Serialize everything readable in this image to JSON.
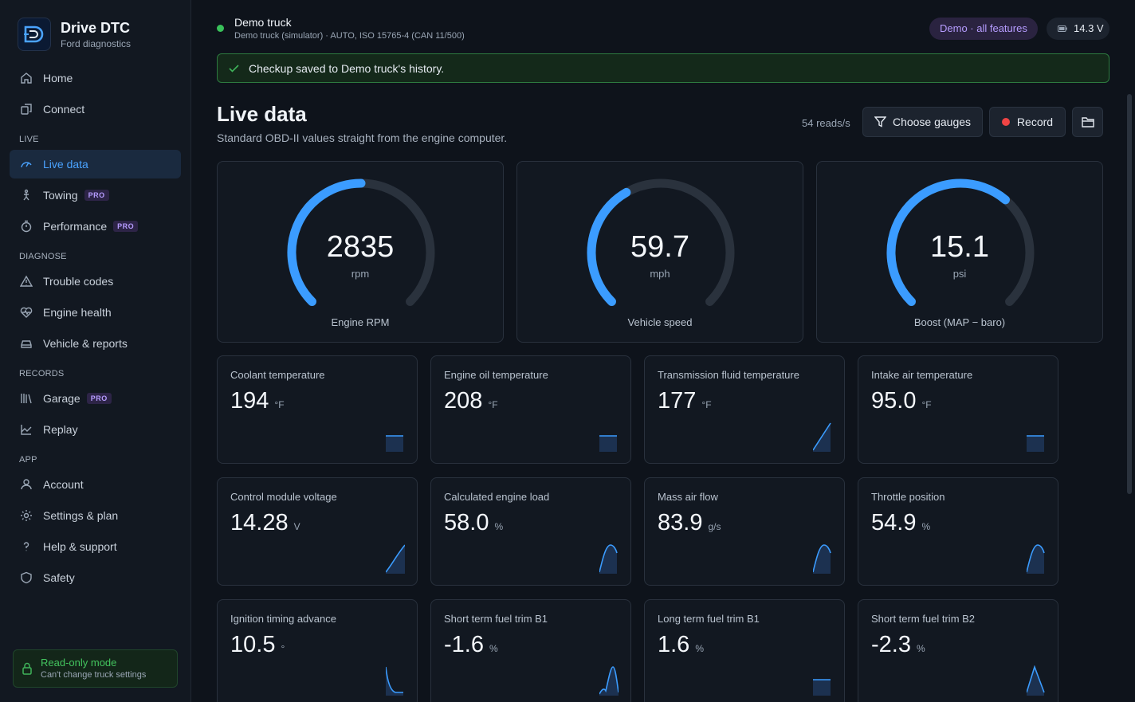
{
  "app": {
    "name": "Drive DTC",
    "subtitle": "Ford diagnostics"
  },
  "sidebar": {
    "sections": [
      {
        "title": "",
        "items": [
          {
            "label": "Home",
            "icon": "home-icon"
          },
          {
            "label": "Connect",
            "icon": "connect-icon"
          }
        ]
      },
      {
        "title": "LIVE",
        "items": [
          {
            "label": "Live data",
            "icon": "gauge-icon",
            "active": true
          },
          {
            "label": "Towing",
            "icon": "towing-icon",
            "badge": "PRO"
          },
          {
            "label": "Performance",
            "icon": "stopwatch-icon",
            "badge": "PRO"
          }
        ]
      },
      {
        "title": "DIAGNOSE",
        "items": [
          {
            "label": "Trouble codes",
            "icon": "warning-icon"
          },
          {
            "label": "Engine health",
            "icon": "heart-pulse-icon"
          },
          {
            "label": "Vehicle & reports",
            "icon": "car-icon"
          }
        ]
      },
      {
        "title": "RECORDS",
        "items": [
          {
            "label": "Garage",
            "icon": "garage-icon",
            "badge": "PRO"
          },
          {
            "label": "Replay",
            "icon": "chart-area-icon"
          }
        ]
      },
      {
        "title": "APP",
        "items": [
          {
            "label": "Account",
            "icon": "user-icon"
          },
          {
            "label": "Settings & plan",
            "icon": "gear-icon"
          },
          {
            "label": "Help & support",
            "icon": "help-icon"
          },
          {
            "label": "Safety",
            "icon": "shield-icon"
          }
        ]
      }
    ],
    "readonly": {
      "title": "Read-only mode",
      "subtitle": "Can't change truck settings"
    }
  },
  "topbar": {
    "vehicle": "Demo truck",
    "details": "Demo truck (simulator) · AUTO, ISO 15765-4 (CAN 11/500)",
    "demo_badge": "Demo · all features",
    "voltage": "14.3 V",
    "status_color": "#39c15a"
  },
  "banner": {
    "text": "Checkup saved to Demo truck's history."
  },
  "page": {
    "title": "Live data",
    "subtitle": "Standard OBD-II values straight from the engine computer.",
    "reads": "54 reads/s",
    "choose_gauges": "Choose gauges",
    "record": "Record"
  },
  "gauges": [
    {
      "value": "2835",
      "unit": "rpm",
      "label": "Engine RPM",
      "fill": 0.5
    },
    {
      "value": "59.7",
      "unit": "mph",
      "label": "Vehicle speed",
      "fill": 0.39
    },
    {
      "value": "15.1",
      "unit": "psi",
      "label": "Boost (MAP − baro)",
      "fill": 0.65
    }
  ],
  "tiles": [
    {
      "label": "Coolant temperature",
      "value": "194",
      "unit": "°F",
      "spark": "flat"
    },
    {
      "label": "Engine oil temperature",
      "value": "208",
      "unit": "°F",
      "spark": "flat"
    },
    {
      "label": "Transmission fluid temperature",
      "value": "177",
      "unit": "°F",
      "spark": "rise"
    },
    {
      "label": "Intake air temperature",
      "value": "95.0",
      "unit": "°F",
      "spark": "flat"
    },
    {
      "label": "Control module voltage",
      "value": "14.28",
      "unit": "V",
      "spark": "curve"
    },
    {
      "label": "Calculated engine load",
      "value": "58.0",
      "unit": "%",
      "spark": "hump"
    },
    {
      "label": "Mass air flow",
      "value": "83.9",
      "unit": "g/s",
      "spark": "hump"
    },
    {
      "label": "Throttle position",
      "value": "54.9",
      "unit": "%",
      "spark": "hump"
    },
    {
      "label": "Ignition timing advance",
      "value": "10.5",
      "unit": "°",
      "spark": "drop"
    },
    {
      "label": "Short term fuel trim B1",
      "value": "-1.6",
      "unit": "%",
      "spark": "wave"
    },
    {
      "label": "Long term fuel trim B1",
      "value": "1.6",
      "unit": "%",
      "spark": "flat"
    },
    {
      "label": "Short term fuel trim B2",
      "value": "-2.3",
      "unit": "%",
      "spark": "peak"
    }
  ],
  "colors": {
    "accent": "#3b9cff",
    "track": "#2a323d",
    "pro": "#b69cff",
    "success": "#3fb35a"
  }
}
